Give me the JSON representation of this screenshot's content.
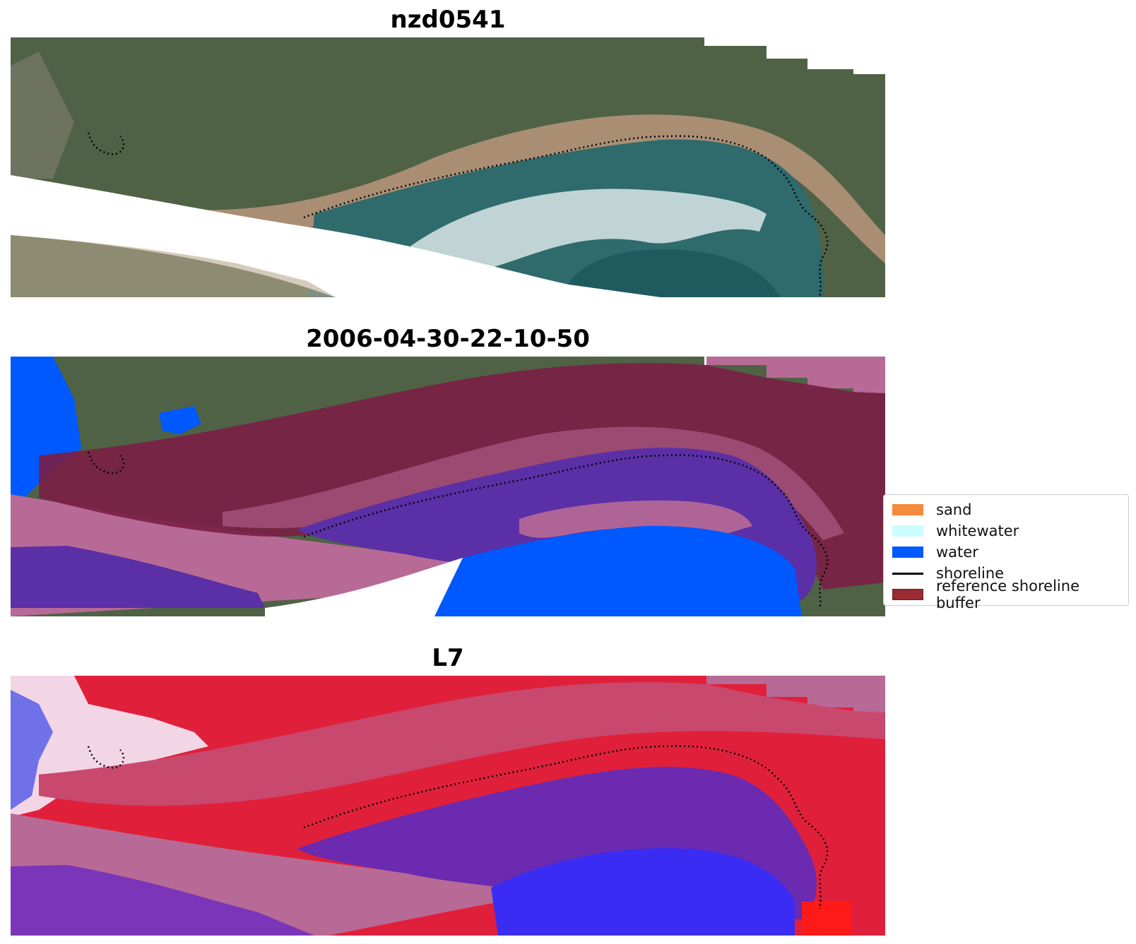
{
  "panels": [
    {
      "title": "nzd0541"
    },
    {
      "title": "2006-04-30-22-10-50"
    },
    {
      "title": "L7"
    }
  ],
  "legend": {
    "items": [
      {
        "label": "sand",
        "color": "#f58a3c",
        "kind": "patch"
      },
      {
        "label": "whitewater",
        "color": "#ccfcff",
        "kind": "patch"
      },
      {
        "label": "water",
        "color": "#0058ff",
        "kind": "patch"
      },
      {
        "label": "shoreline",
        "color": "#000000",
        "kind": "line"
      },
      {
        "label": "reference shoreline buffer",
        "color": "#992b33",
        "kind": "patch"
      }
    ]
  },
  "colors": {
    "vegetation": "#4f6246",
    "sand_beach": "#a98e74",
    "sea": "#2f6a6c",
    "buffer_overlay": "#7a1f45",
    "outside_buffer": "#b86a96",
    "classified_ocean": "#5b2fa6",
    "water_class": "#0058ff",
    "index_high": "#e8223a",
    "index_low": "#3a2cf2"
  }
}
